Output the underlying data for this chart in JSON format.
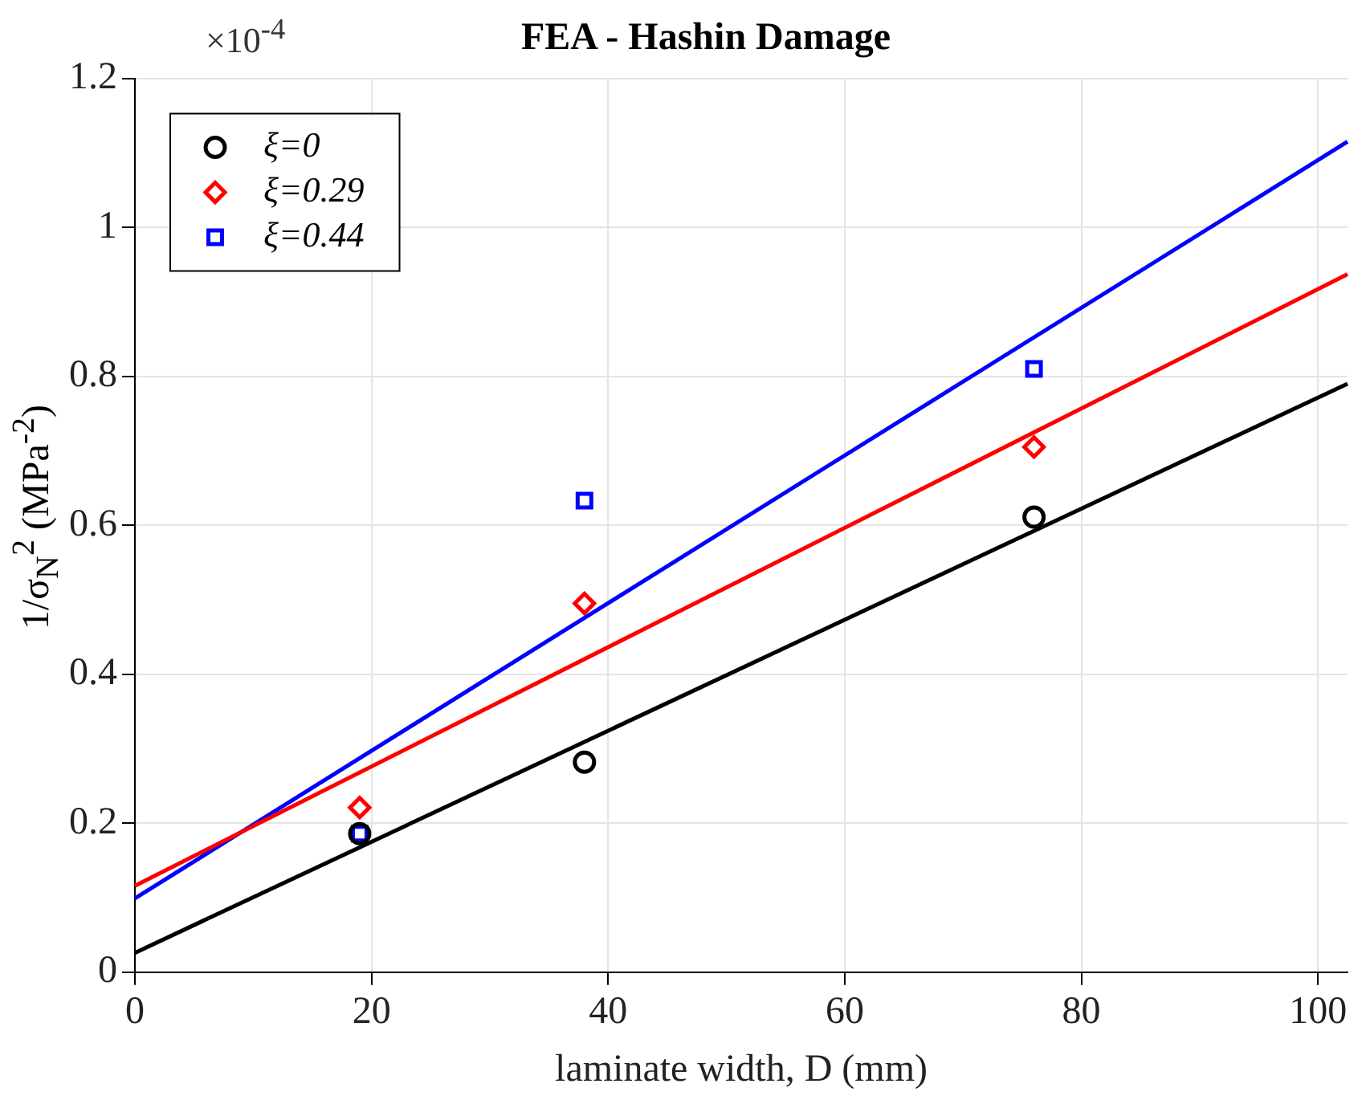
{
  "chart_data": {
    "type": "scatter",
    "title": "FEA - Hashin Damage",
    "xlabel": "laminate width, D (mm)",
    "ylabel": "1/σ$_{N}$$^{2}$ (MPa$^{-2}$)",
    "annotations": [
      "×10$^{-4}$"
    ],
    "xlim": [
      0,
      102.5
    ],
    "xticks": [
      0,
      20,
      40,
      60,
      80,
      100
    ],
    "ylim": [
      0,
      1.2
    ],
    "yticks": [
      0,
      0.2,
      0.4,
      0.6,
      0.8,
      1,
      1.2
    ],
    "grid": true,
    "legend": "top left",
    "series": [
      {
        "name": "ξ=0",
        "type": "scatter",
        "marker": "circle",
        "color": "#000000",
        "x": [
          19,
          38,
          76
        ],
        "values": [
          0.186,
          0.282,
          0.611
        ]
      },
      {
        "name": "ξ=0.29",
        "type": "scatter",
        "marker": "diamond",
        "color": "#ff0000",
        "x": [
          19,
          38,
          76
        ],
        "values": [
          0.221,
          0.495,
          0.705
        ]
      },
      {
        "name": "ξ=0.44",
        "type": "scatter",
        "marker": "square",
        "color": "#0000ff",
        "x": [
          19,
          38,
          76
        ],
        "values": [
          0.186,
          0.633,
          0.81
        ]
      },
      {
        "type": "line",
        "marker": "none",
        "color": "#000000",
        "x": [
          0,
          102.5
        ],
        "values": [
          0.026,
          0.79
        ]
      },
      {
        "type": "line",
        "marker": "none",
        "color": "#ff0000",
        "x": [
          0,
          102.5
        ],
        "values": [
          0.116,
          0.937
        ]
      },
      {
        "type": "line",
        "marker": "none",
        "color": "#0000ff",
        "x": [
          0,
          102.5
        ],
        "values": [
          0.099,
          1.115
        ]
      }
    ]
  }
}
